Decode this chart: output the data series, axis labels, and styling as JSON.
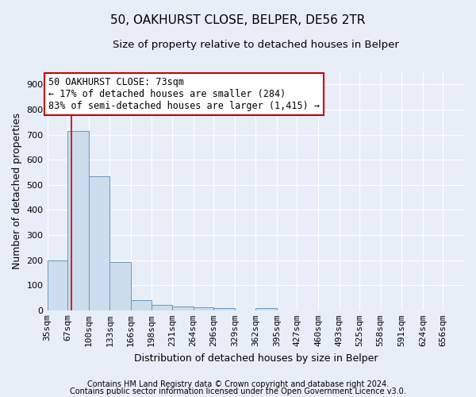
{
  "title1": "50, OAKHURST CLOSE, BELPER, DE56 2TR",
  "title2": "Size of property relative to detached houses in Belper",
  "xlabel": "Distribution of detached houses by size in Belper",
  "ylabel": "Number of detached properties",
  "footnote1": "Contains HM Land Registry data © Crown copyright and database right 2024.",
  "footnote2": "Contains public sector information licensed under the Open Government Licence v3.0.",
  "bar_edges": [
    35,
    67,
    100,
    133,
    166,
    198,
    231,
    264,
    296,
    329,
    362,
    395,
    427,
    460,
    493,
    525,
    558,
    591,
    624,
    656,
    689
  ],
  "bar_heights": [
    200,
    715,
    535,
    193,
    42,
    20,
    15,
    13,
    10,
    0,
    9,
    0,
    0,
    0,
    0,
    0,
    0,
    0,
    0,
    0,
    0
  ],
  "bar_color": "#ccdded",
  "bar_edge_color": "#6699bb",
  "property_size": 73,
  "vline_color": "#cc0000",
  "annotation_line1": "50 OAKHURST CLOSE: 73sqm",
  "annotation_line2": "← 17% of detached houses are smaller (284)",
  "annotation_line3": "83% of semi-detached houses are larger (1,415) →",
  "annotation_box_color": "#ffffff",
  "annotation_box_edge_color": "#cc0000",
  "ylim": [
    0,
    950
  ],
  "yticks": [
    0,
    100,
    200,
    300,
    400,
    500,
    600,
    700,
    800,
    900
  ],
  "background_color": "#e8eef8",
  "grid_color": "#ffffff",
  "title1_fontsize": 11,
  "title2_fontsize": 9.5,
  "xlabel_fontsize": 9,
  "ylabel_fontsize": 9,
  "tick_fontsize": 8,
  "annotation_fontsize": 8.5,
  "footnote_fontsize": 7
}
